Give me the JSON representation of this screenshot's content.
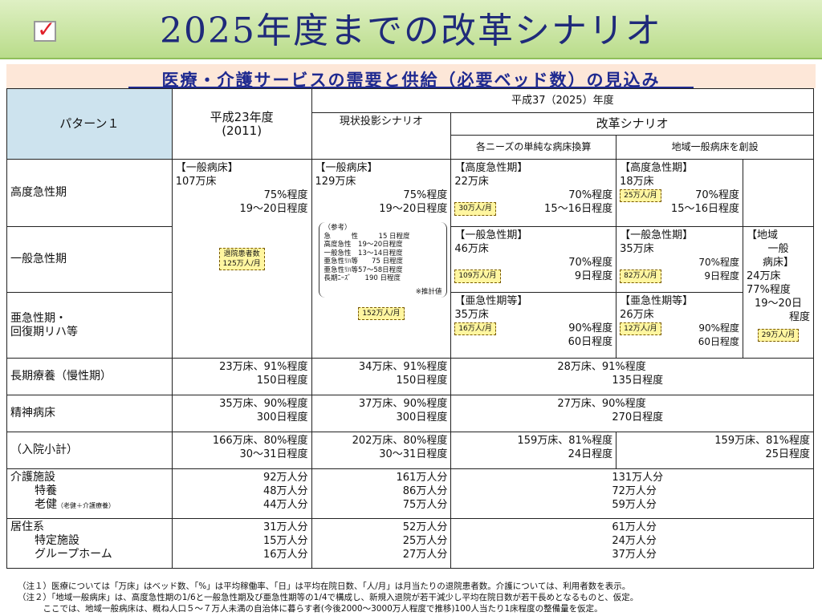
{
  "title": "2025年度までの改革シナリオ",
  "subtitle": "医療・介護サービスの需要と供給（必要ベッド数）の見込み",
  "header": {
    "pattern": "パターン１",
    "h23": "平成23年度",
    "h23_year": "(2011)",
    "h37": "平成37（2025）年度",
    "current": "現状投影シナリオ",
    "reform": "改革シナリオ",
    "simple": "各ニーズの単純な病床換算",
    "regional": "地域一般病床を創設"
  },
  "rows": {
    "kodo": "高度急性期",
    "ippan": "一般急性期",
    "akyu1": "亜急性期・",
    "akyu2": "回復期リハ等",
    "choki": "長期療養（慢性期）",
    "seishin": "精神病床",
    "shokei": "（入院小計）",
    "kaigo": "介護施設",
    "tokuyo": "特養",
    "roken": "老健",
    "roken_note": "（老健＋介護療養）",
    "kyoju": "居住系",
    "tokutei": "特定施設",
    "group": "グループホーム"
  },
  "h23_block": {
    "label": "【一般病床】",
    "beds": "107万床",
    "rate": "75%程度",
    "days": "19～20日程度",
    "box": "退院患者数\n125万人/月"
  },
  "cur_block": {
    "label": "【一般病床】",
    "beds": "129万床",
    "rate": "75%程度",
    "days": "19～20日程度",
    "ref_title": "（参考）",
    "ref_lines": [
      "急　　　性　　　15 日程度",
      "高度急性　19～20日程度",
      "一般急性　13～14日程度",
      "亜急性ﾘﾊ等　　75 日程度",
      "亜急性ﾘﾊ等57～58日程度",
      "長期ﾆｰｽﾞ　　190 日程度"
    ],
    "ref_note": "※推計値",
    "box": "152万人/月"
  },
  "simple_kodo": {
    "label": "【高度急性期】",
    "beds": "22万床",
    "rate": "70%程度",
    "box": "30万人/月",
    "days": "15～16日程度"
  },
  "simple_ippan": {
    "label": "【一般急性期】",
    "beds": "46万床",
    "rate": "70%程度",
    "box": "109万人/月",
    "days": "9日程度"
  },
  "simple_akyu": {
    "label": "【亜急性期等】",
    "beds": "35万床",
    "rate": "90%程度",
    "box": "16万人/月",
    "days": "60日程度"
  },
  "reg_kodo": {
    "label": "【高度急性期】",
    "beds": "18万床",
    "rate": "70%程度",
    "box": "25万人/月",
    "days": "15～16日程度"
  },
  "reg_ippan": {
    "label": "【一般急性期】",
    "beds": "35万床",
    "rate": "70%程度",
    "box": "82万人/月",
    "days": "9日程度"
  },
  "reg_akyu": {
    "label": "【亜急性期等】",
    "beds": "26万床",
    "rate": "90%程度",
    "box": "12万人/月",
    "days": "60日程度"
  },
  "reg_local": {
    "l1": "【地域",
    "l2": "一般",
    "l3": "病床】",
    "beds": "24万床",
    "rate": "77%程度",
    "days1": "19～20日",
    "days2": "程度",
    "box": "29万人/月"
  },
  "choki": {
    "h23a": "23万床、91%程度",
    "h23b": "150日程度",
    "cura": "34万床、91%程度",
    "curb": "150日程度",
    "refa": "28万床、91%程度",
    "refb": "135日程度"
  },
  "seishin": {
    "h23a": "35万床、90%程度",
    "h23b": "300日程度",
    "cura": "37万床、90%程度",
    "curb": "300日程度",
    "refa": "27万床、90%程度",
    "refb": "270日程度"
  },
  "shokei": {
    "h23a": "166万床、80%程度",
    "h23b": "30～31日程度",
    "cura": "202万床、80%程度",
    "curb": "30～31日程度",
    "sima": "159万床、81%程度",
    "simb": "24日程度",
    "rega": "159万床、81%程度",
    "regb": "25日程度"
  },
  "kaigo": {
    "h23": [
      "92万人分",
      "48万人分",
      "44万人分"
    ],
    "cur": [
      "161万人分",
      "86万人分",
      "75万人分"
    ],
    "ref": [
      "131万人分",
      "72万人分",
      "59万人分"
    ]
  },
  "kyoju": {
    "h23": [
      "31万人分",
      "15万人分",
      "16万人分"
    ],
    "cur": [
      "52万人分",
      "25万人分",
      "27万人分"
    ],
    "ref": [
      "61万人分",
      "24万人分",
      "37万人分"
    ]
  },
  "notes": [
    "（注１）医療については「万床」はベッド数、「%」は平均稼働率、「日」は平均在院日数、「人/月」は月当たりの退院患者数。介護については、利用者数を表示。",
    "（注２）「地域一般病床」は、高度急性期の1/6と一般急性期及び亜急性期等の1/4で構成し、新規入退院が若干減少し平均在院日数が若干長めとなるものと、仮定。",
    "　　　ここでは、地域一般病床は、概ね人口５～７万人未満の自治体に暮らす者(今後2000～3000万人程度で推移)100人当たり1床程度の整備量を仮定。"
  ]
}
